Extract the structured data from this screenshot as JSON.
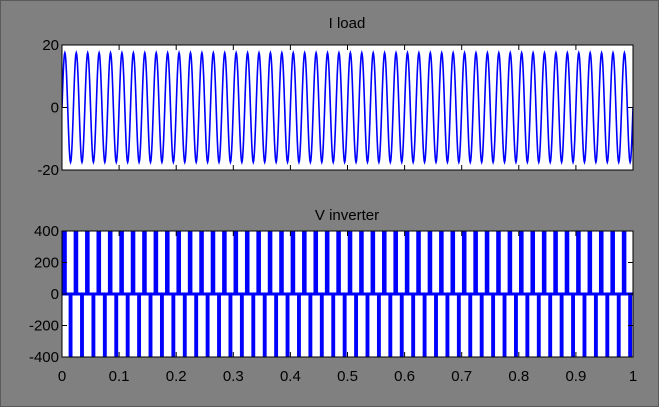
{
  "colors": {
    "background": "#808080",
    "axes_bg": "#ffffff",
    "series": "#0000ff",
    "text": "#000000"
  },
  "chart_data": [
    {
      "type": "line",
      "title": "I load",
      "xlabel": "",
      "ylabel": "",
      "xlim": [
        0,
        1
      ],
      "ylim": [
        -20,
        20
      ],
      "xticks": [
        "0",
        "0.1",
        "0.2",
        "0.3",
        "0.4",
        "0.5",
        "0.6",
        "0.7",
        "0.8",
        "0.9",
        "1"
      ],
      "xticks_visible": false,
      "yticks": [
        "-20",
        "0",
        "20"
      ],
      "grid": false,
      "series": [
        {
          "color": "#0000ff",
          "waveform": "sine",
          "frequency_hz": 50,
          "amplitude": 17.5,
          "x_start": 0,
          "x_end": 1
        }
      ]
    },
    {
      "type": "line",
      "title": "V inverter",
      "xlabel": "",
      "ylabel": "",
      "xlim": [
        0,
        1
      ],
      "ylim": [
        -400,
        400
      ],
      "xticks": [
        "0",
        "0.1",
        "0.2",
        "0.3",
        "0.4",
        "0.5",
        "0.6",
        "0.7",
        "0.8",
        "0.9",
        "1"
      ],
      "xticks_visible": true,
      "yticks": [
        "-400",
        "-200",
        "0",
        "200",
        "400"
      ],
      "grid": false,
      "series": [
        {
          "color": "#0000ff",
          "waveform": "pwm",
          "frequency_hz": 50,
          "levels": [
            -400,
            0,
            400
          ],
          "x_start": 0,
          "x_end": 1
        }
      ]
    }
  ]
}
